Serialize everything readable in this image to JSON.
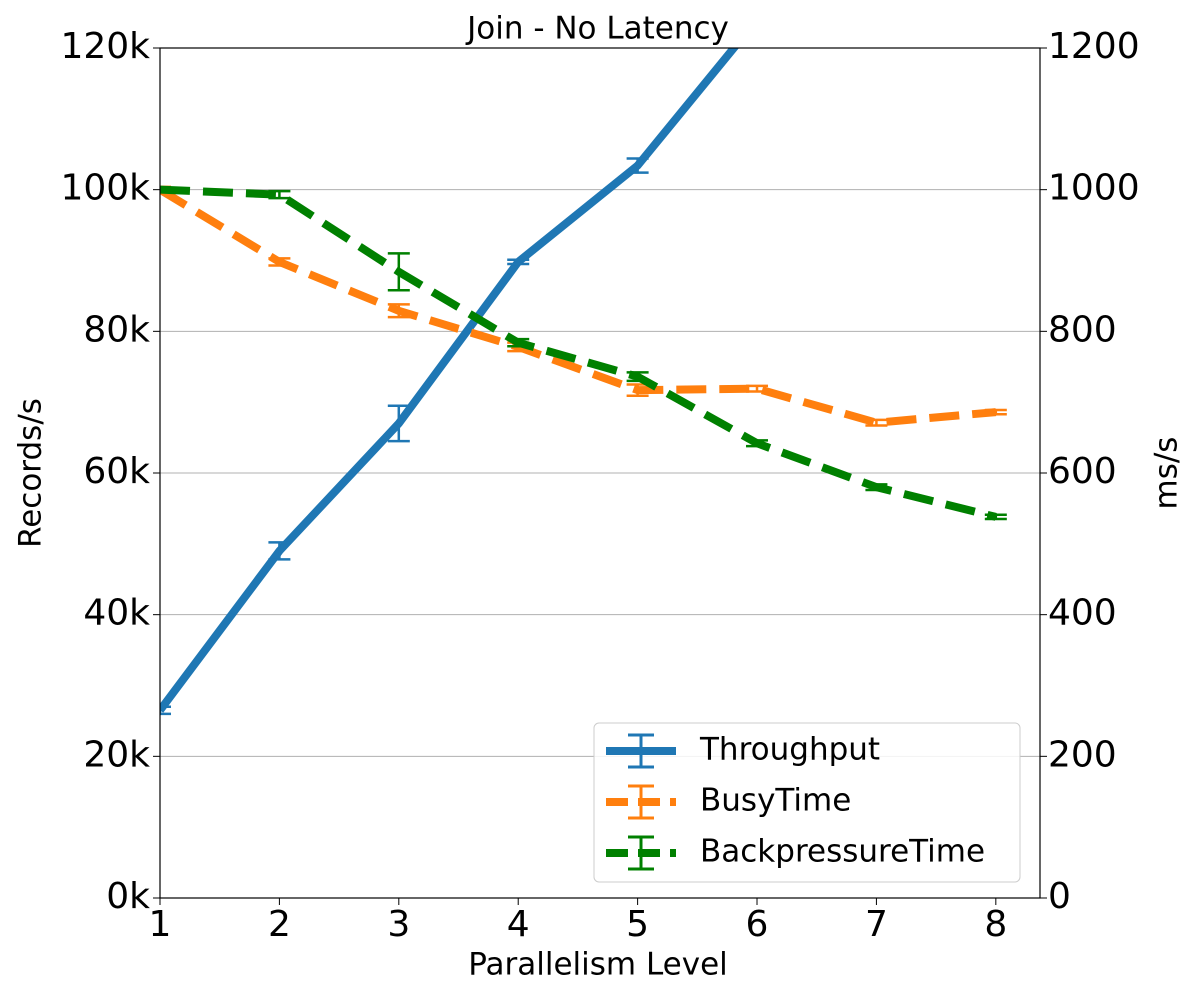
{
  "chart_data": {
    "type": "line",
    "title": "Join - No Latency",
    "xlabel": "Parallelism Level",
    "ylabel": "Records/s",
    "y2label": "ms/s",
    "x": [
      1,
      2,
      3,
      4,
      5,
      6,
      7,
      8
    ],
    "xlim": [
      1,
      8.37
    ],
    "xticks": [
      1,
      2,
      3,
      4,
      5,
      6,
      7,
      8
    ],
    "ylim": [
      0,
      120000
    ],
    "yticks": [
      {
        "value": 0,
        "label": "0k"
      },
      {
        "value": 20000,
        "label": "20k"
      },
      {
        "value": 40000,
        "label": "40k"
      },
      {
        "value": 60000,
        "label": "60k"
      },
      {
        "value": 80000,
        "label": "80k"
      },
      {
        "value": 100000,
        "label": "100k"
      },
      {
        "value": 120000,
        "label": "120k"
      }
    ],
    "y2lim": [
      0,
      1200
    ],
    "y2ticks": [
      0,
      200,
      400,
      600,
      800,
      1000,
      1200
    ],
    "grid": true,
    "legend": "lower right",
    "series": [
      {
        "name": "Throughput",
        "color": "#1f77b4",
        "dashed": false,
        "axis": "y",
        "values": [
          26500,
          49000,
          67000,
          89800,
          103400,
          124000,
          null,
          null
        ],
        "errors": [
          500,
          1200,
          2500,
          300,
          1000,
          null,
          null,
          null
        ]
      },
      {
        "name": "BusyTime",
        "color": "#ff7f0e",
        "dashed": true,
        "axis": "y2",
        "values": [
          1000,
          898,
          829,
          778,
          717,
          719,
          671,
          686
        ],
        "errors": [
          4,
          5,
          9,
          6,
          8,
          4,
          4,
          3
        ]
      },
      {
        "name": "BackpressureTime",
        "color": "#008000",
        "dashed": true,
        "axis": "y2",
        "values": [
          1000,
          993,
          884,
          784,
          736,
          642,
          580,
          538
        ],
        "errors": [
          3,
          5,
          26,
          5,
          6,
          4,
          4,
          3
        ]
      }
    ]
  }
}
